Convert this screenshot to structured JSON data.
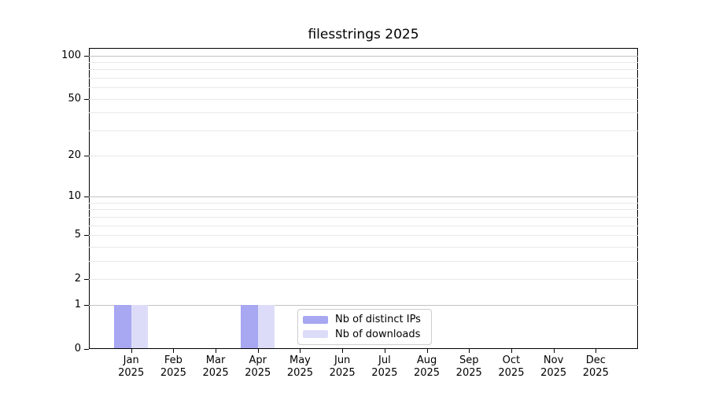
{
  "chart_data": {
    "type": "bar",
    "title": "filesstrings 2025",
    "categories": [
      "Jan",
      "Feb",
      "Mar",
      "Apr",
      "May",
      "Jun",
      "Jul",
      "Aug",
      "Sep",
      "Oct",
      "Nov",
      "Dec"
    ],
    "year": "2025",
    "series": [
      {
        "name": "Nb of distinct IPs",
        "color": "#a7a7f2",
        "values": [
          1,
          0,
          0,
          1,
          0,
          0,
          0,
          0,
          0,
          0,
          0,
          0
        ]
      },
      {
        "name": "Nb of downloads",
        "color": "#dcdcf9",
        "values": [
          1,
          0,
          0,
          1,
          0,
          0,
          0,
          0,
          0,
          0,
          0,
          0
        ]
      }
    ],
    "yscale": "log1p",
    "ylim": [
      0,
      112
    ],
    "y_tick_values": [
      100,
      50,
      20,
      10,
      5,
      2,
      1,
      0
    ],
    "y_major_gridlines": [
      1,
      10,
      100
    ],
    "y_minor_gridlines": [
      2,
      3,
      4,
      5,
      6,
      7,
      8,
      9,
      20,
      30,
      40,
      50,
      60,
      70,
      80,
      90
    ],
    "grid": true,
    "legend_position": "lower center",
    "colors": {
      "spine": "#000000",
      "major_grid": "#c2c2c2",
      "minor_grid": "#e8e8e8",
      "text": "#000000",
      "background": "#ffffff"
    }
  }
}
